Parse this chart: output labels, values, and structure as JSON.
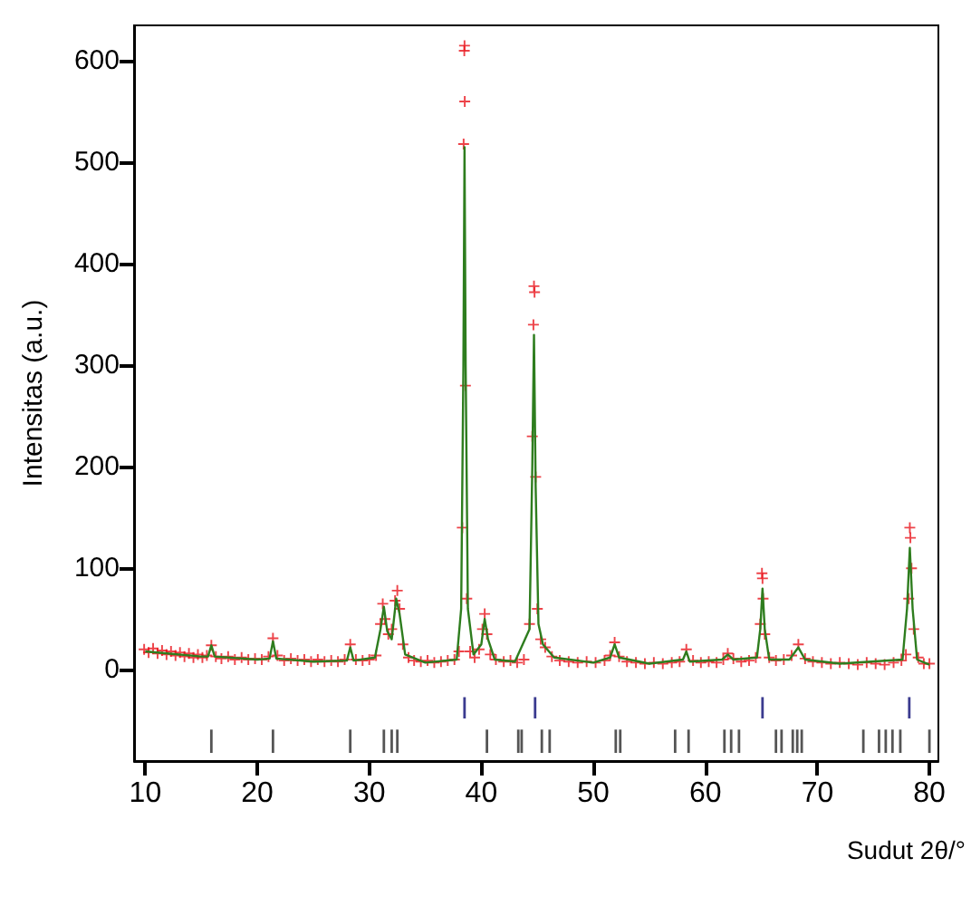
{
  "chart_data": {
    "type": "scatter",
    "xlabel": "Sudut 2θ/°",
    "ylabel": "Intensitas (a.u.)",
    "xlim": [
      9,
      80.8
    ],
    "ylim": [
      -90,
      635
    ],
    "xticks": [
      10,
      20,
      30,
      40,
      50,
      60,
      70,
      80
    ],
    "yticks": [
      0,
      100,
      200,
      300,
      400,
      500,
      600
    ],
    "grid": false,
    "series": [
      {
        "marker": "cross",
        "color": "#e8141c",
        "x": [
          9.9,
          10.3,
          10.7,
          11.1,
          11.5,
          11.9,
          12.3,
          12.7,
          13.1,
          13.5,
          13.9,
          14.3,
          14.7,
          15.1,
          15.5,
          15.9,
          16.3,
          16.8,
          17.4,
          18,
          18.6,
          19.2,
          19.8,
          20.4,
          21,
          21.4,
          21.8,
          22.4,
          23,
          23.6,
          24.2,
          24.8,
          25.4,
          26,
          26.6,
          27.2,
          27.8,
          28.3,
          28.8,
          29.4,
          30,
          30.6,
          31,
          31.2,
          31.4,
          31.7,
          32,
          32.3,
          32.5,
          32.7,
          33,
          33.5,
          34,
          34.6,
          35.2,
          35.8,
          36.4,
          37,
          37.6,
          38,
          38.3,
          38.42,
          38.48,
          38.5,
          38.52,
          38.58,
          38.7,
          39,
          39.4,
          39.8,
          40.1,
          40.3,
          40.5,
          40.8,
          41.3,
          42,
          42.6,
          43.2,
          43.8,
          44.3,
          44.55,
          44.65,
          44.7,
          44.75,
          44.85,
          45,
          45.3,
          45.7,
          46.3,
          47,
          47.8,
          48.6,
          49.4,
          50.2,
          51,
          51.5,
          51.9,
          52.3,
          53,
          53.8,
          54.6,
          55.4,
          56.2,
          57,
          57.7,
          58.3,
          58.9,
          59.6,
          60.3,
          61,
          61.6,
          62,
          62.5,
          63.2,
          63.9,
          64.5,
          64.9,
          65.05,
          65.1,
          65.15,
          65.3,
          65.7,
          66.3,
          67,
          67.7,
          68.3,
          68.9,
          69.6,
          70.4,
          71.2,
          72,
          72.8,
          73.6,
          74.4,
          75.2,
          76,
          76.8,
          77.5,
          77.9,
          78.15,
          78.25,
          78.3,
          78.4,
          78.6,
          79,
          79.5,
          80
        ],
        "values": [
          20,
          17,
          21,
          16,
          19,
          15,
          18,
          14,
          17,
          13,
          16,
          12,
          15,
          12,
          14,
          24,
          13,
          11,
          13,
          10,
          12,
          10,
          11,
          10,
          13,
          31,
          14,
          9,
          11,
          9,
          10,
          8,
          10,
          8,
          9,
          8,
          10,
          25,
          10,
          9,
          10,
          14,
          45,
          65,
          50,
          35,
          40,
          68,
          78,
          60,
          25,
          12,
          9,
          8,
          9,
          7,
          8,
          9,
          10,
          18,
          140,
          518,
          610,
          615,
          560,
          280,
          70,
          18,
          12,
          20,
          40,
          55,
          35,
          15,
          10,
          8,
          9,
          7,
          10,
          45,
          230,
          340,
          378,
          372,
          190,
          60,
          30,
          22,
          13,
          9,
          8,
          7,
          8,
          7,
          9,
          14,
          27,
          13,
          8,
          7,
          6,
          7,
          6,
          7,
          8,
          20,
          9,
          7,
          8,
          7,
          10,
          16,
          11,
          8,
          9,
          12,
          45,
          95,
          90,
          70,
          35,
          12,
          9,
          10,
          14,
          25,
          11,
          8,
          7,
          6,
          7,
          6,
          5,
          7,
          6,
          5,
          7,
          9,
          15,
          70,
          140,
          130,
          100,
          40,
          12,
          6,
          6
        ]
      },
      {
        "type": "line",
        "marker": "none",
        "color": "#2e7d1e",
        "x": [
          10,
          12,
          15,
          15.6,
          15.9,
          16.2,
          20,
          21.1,
          21.4,
          21.7,
          25,
          28,
          28.3,
          28.6,
          30.5,
          31,
          31.3,
          31.6,
          32,
          32.4,
          32.7,
          33.2,
          35,
          37.8,
          38.2,
          38.4,
          38.5,
          38.6,
          38.8,
          39.3,
          40,
          40.3,
          40.6,
          41.2,
          43,
          44.3,
          44.55,
          44.7,
          44.85,
          45.1,
          45.5,
          46.5,
          50,
          51.5,
          51.9,
          52.3,
          55,
          58,
          58.3,
          58.6,
          61.5,
          62,
          62.5,
          64.6,
          64.9,
          65.1,
          65.3,
          65.7,
          67.5,
          68.3,
          68.9,
          72,
          77.6,
          78,
          78.25,
          78.5,
          78.9,
          80
        ],
        "values": [
          18,
          16,
          13,
          13,
          24,
          13,
          10,
          11,
          28,
          11,
          8,
          9,
          22,
          9,
          12,
          40,
          62,
          38,
          30,
          70,
          55,
          15,
          7,
          10,
          60,
          300,
          515,
          300,
          60,
          15,
          25,
          50,
          30,
          10,
          8,
          40,
          200,
          330,
          180,
          45,
          25,
          12,
          7,
          12,
          25,
          12,
          6,
          10,
          18,
          8,
          10,
          15,
          10,
          12,
          40,
          80,
          40,
          10,
          10,
          22,
          10,
          6,
          10,
          60,
          120,
          60,
          10,
          5
        ]
      },
      {
        "type": "bar",
        "color": "#3b3b8f",
        "x": [
          38.5,
          44.8,
          65.1,
          78.2
        ],
        "base": [
          -48,
          -48,
          -48,
          -48
        ],
        "values": [
          21,
          21,
          21,
          21
        ]
      },
      {
        "type": "bar",
        "color": "#555555",
        "x": [
          15.9,
          21.4,
          28.3,
          31.3,
          32,
          32.5,
          40.5,
          43.3,
          43.6,
          45.4,
          46.1,
          52,
          52.4,
          57.3,
          58.5,
          61.7,
          62.3,
          63,
          66.3,
          66.8,
          67.8,
          68.2,
          68.6,
          74.1,
          75.5,
          76.1,
          76.7,
          77.4,
          80
        ],
        "base": [
          -82,
          -82,
          -82,
          -82,
          -82,
          -82,
          -82,
          -82,
          -82,
          -82,
          -82,
          -82,
          -82,
          -82,
          -82,
          -82,
          -82,
          -82,
          -82,
          -82,
          -82,
          -82,
          -82,
          -82,
          -82,
          -82,
          -82,
          -82,
          -82
        ],
        "values": [
          23,
          23,
          23,
          23,
          23,
          23,
          23,
          23,
          23,
          23,
          23,
          23,
          23,
          23,
          23,
          23,
          23,
          23,
          23,
          23,
          23,
          23,
          23,
          23,
          23,
          23,
          23,
          23,
          23
        ]
      }
    ]
  }
}
